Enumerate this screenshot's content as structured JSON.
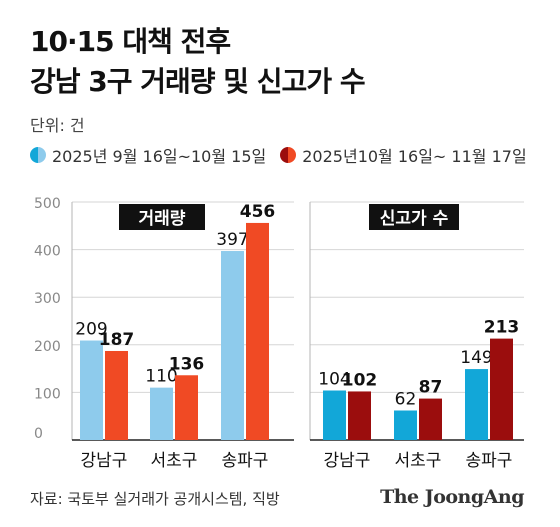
{
  "title_line1": "10·15 대책 전후",
  "title_line2": "강남 3구 거래량 및 신고가 수",
  "unit": "단위: 건",
  "colors": {
    "before_light": "#8ecbec",
    "before_dark": "#12a7d8",
    "after_light": "#f04a24",
    "after_dark": "#9b0d0d"
  },
  "source": "자료: 국토부 실거래가 공개시스템, 직방",
  "brand": "The JoongAng",
  "chart_data": [
    {
      "type": "bar",
      "title": "거래량",
      "categories": [
        "강남구",
        "서초구",
        "송파구"
      ],
      "series": [
        {
          "name": "2025년 9월 16일~10월 15일",
          "values": [
            209,
            110,
            397
          ]
        },
        {
          "name": "2025년10월 16일~ 11월 17일",
          "values": [
            187,
            136,
            456
          ]
        }
      ],
      "yticks": [
        "500",
        "400",
        "300",
        "200",
        "100",
        "0"
      ],
      "ylim": [
        0,
        500
      ],
      "grid": true,
      "legend": "top-left"
    },
    {
      "type": "bar",
      "title": "신고가 수",
      "categories": [
        "강남구",
        "서초구",
        "송파구"
      ],
      "series": [
        {
          "name": "2025년 9월 16일~10월 15일",
          "values": [
            104,
            62,
            149
          ]
        },
        {
          "name": "2025년10월 16일~ 11월 17일",
          "values": [
            102,
            87,
            213
          ]
        }
      ],
      "ylim": [
        0,
        500
      ],
      "grid": true
    }
  ]
}
